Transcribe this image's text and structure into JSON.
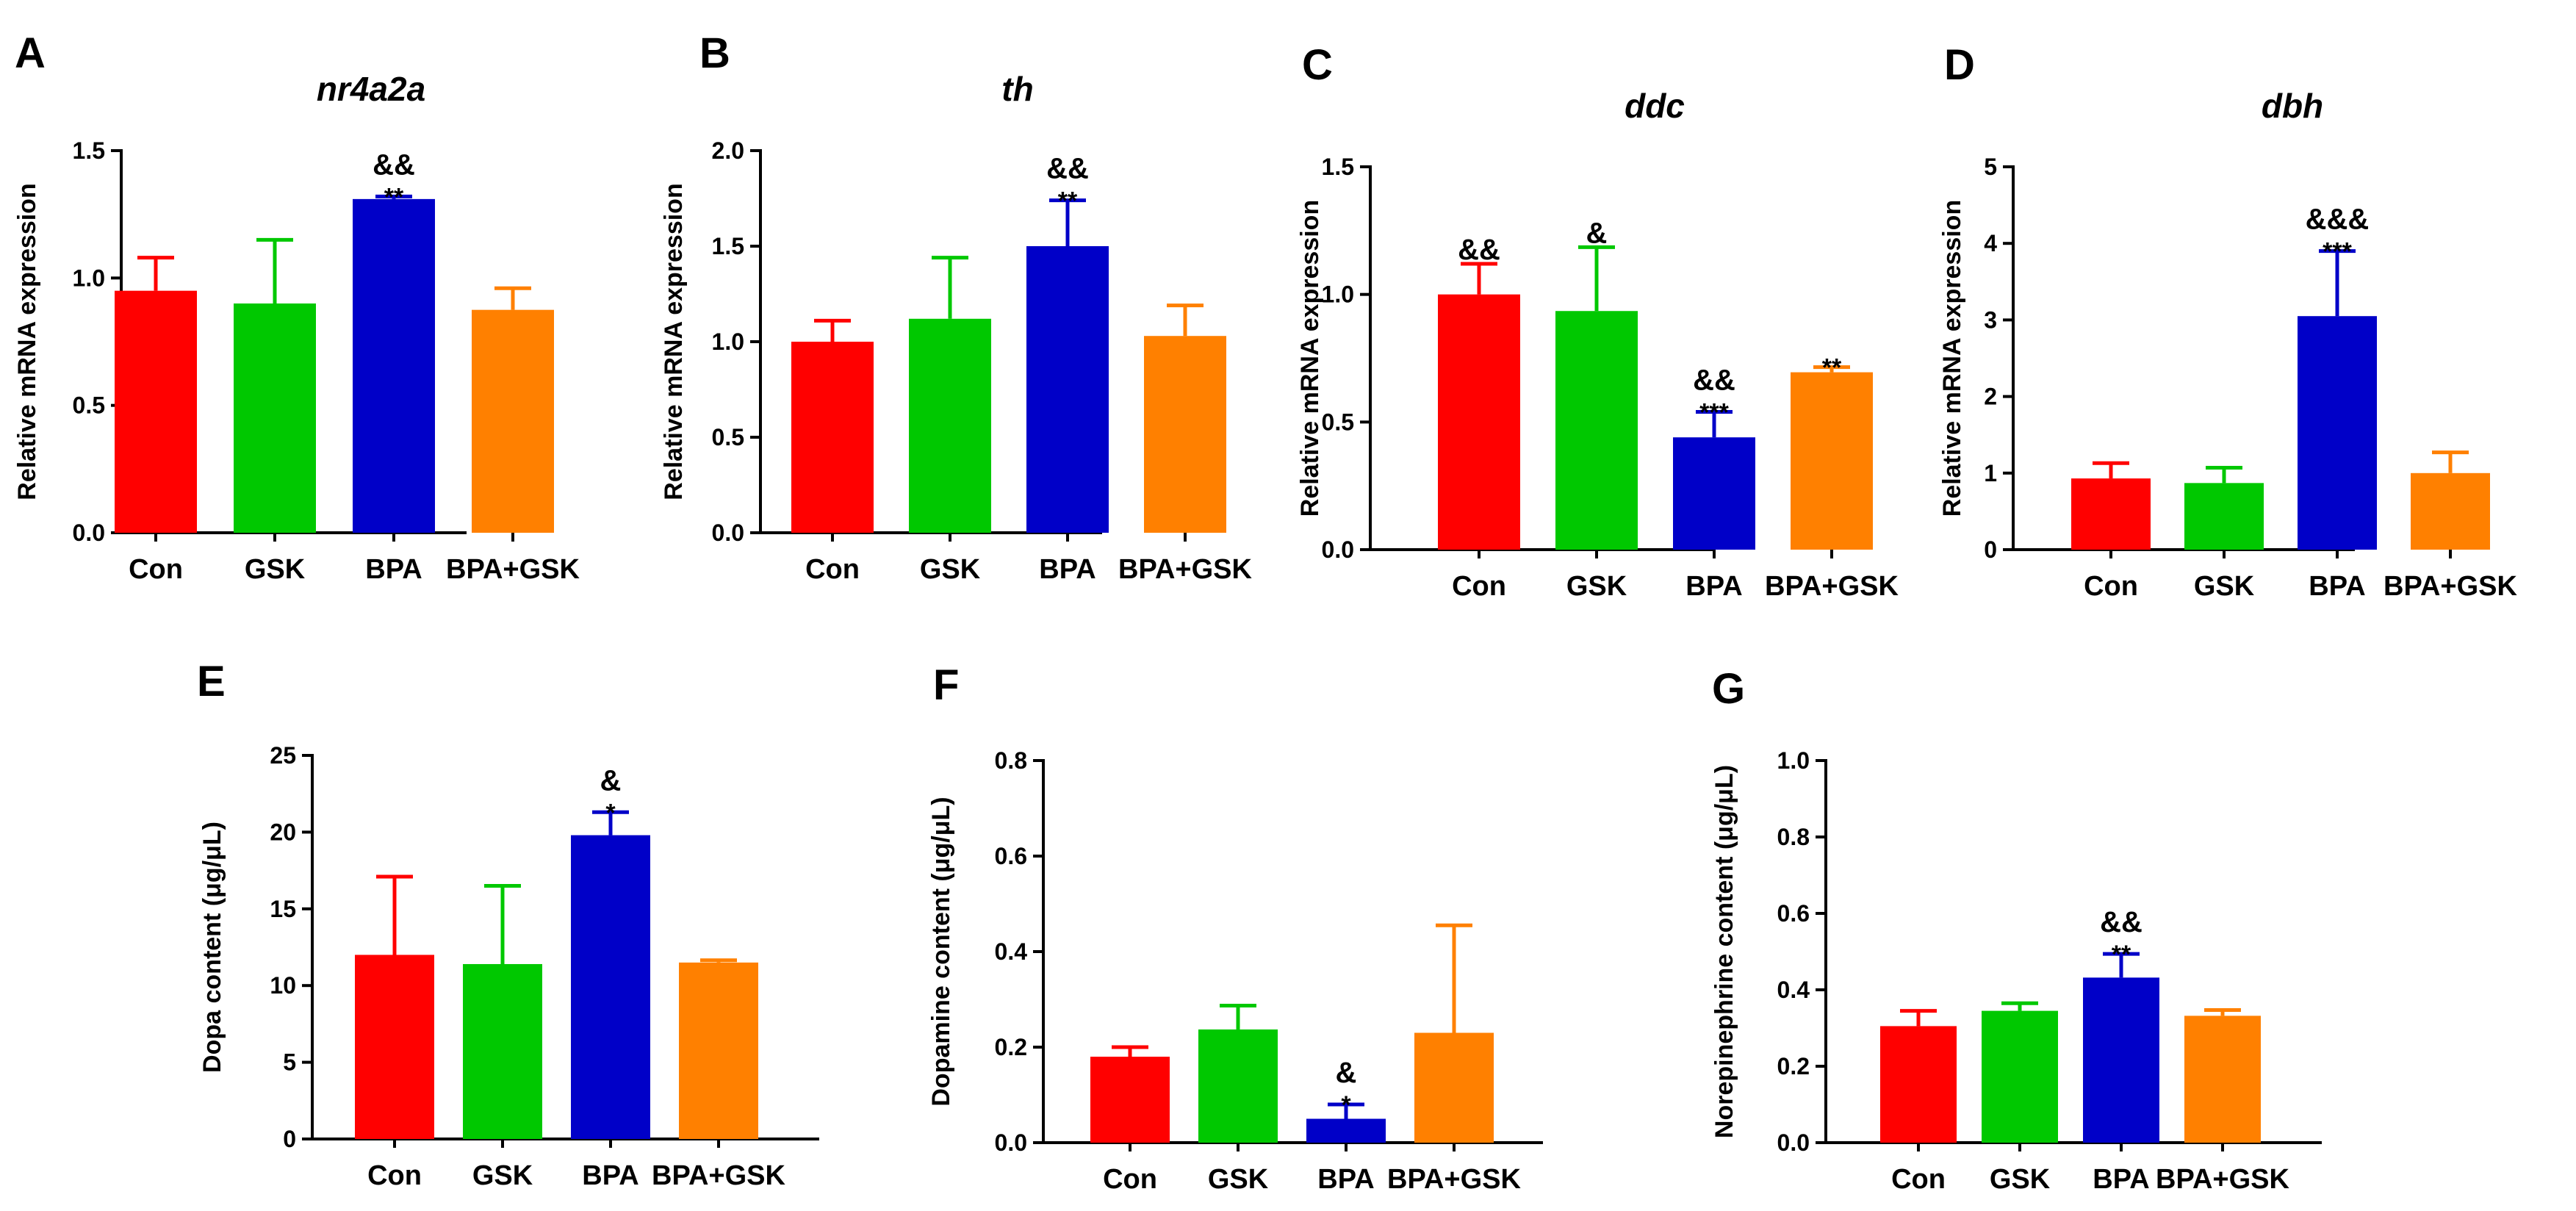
{
  "chart_data": [
    {
      "id": "A",
      "letter": "A",
      "type": "bar",
      "title": "nr4a2a",
      "ylabel": "Relative mRNA expression",
      "ylim": [
        0,
        1.5
      ],
      "yticks": [
        "0.0",
        "0.5",
        "1.0",
        "1.5"
      ],
      "categories": [
        "Con",
        "GSK",
        "BPA",
        "BPA+GSK"
      ],
      "values": [
        0.95,
        0.9,
        1.31,
        0.875
      ],
      "errors": [
        0.13,
        0.25,
        0.01,
        0.085
      ],
      "colors": [
        "#ff0000",
        "#00c800",
        "#0000c8",
        "#ff8000"
      ],
      "annotations": [
        {
          "index": 2,
          "amp": "&&",
          "star": "**"
        }
      ]
    },
    {
      "id": "B",
      "letter": "B",
      "type": "bar",
      "title": "th",
      "ylabel": "Relative mRNA expression",
      "ylim": [
        0,
        2.0
      ],
      "yticks": [
        "0.0",
        "0.5",
        "1.0",
        "1.5",
        "2.0"
      ],
      "categories": [
        "Con",
        "GSK",
        "BPA",
        "BPA+GSK"
      ],
      "values": [
        1.0,
        1.12,
        1.5,
        1.03
      ],
      "errors": [
        0.11,
        0.32,
        0.24,
        0.16
      ],
      "colors": [
        "#ff0000",
        "#00c800",
        "#0000c8",
        "#ff8000"
      ],
      "annotations": [
        {
          "index": 2,
          "amp": "&&",
          "star": "**"
        }
      ]
    },
    {
      "id": "C",
      "letter": "C",
      "type": "bar",
      "title": "ddc",
      "ylabel": "Relative mRNA expression",
      "ylim": [
        0,
        1.5
      ],
      "yticks": [
        "0.0",
        "0.5",
        "1.0",
        "1.5"
      ],
      "categories": [
        "Con",
        "GSK",
        "BPA",
        "BPA+GSK"
      ],
      "values": [
        1.0,
        0.935,
        0.44,
        0.695
      ],
      "errors": [
        0.12,
        0.25,
        0.1,
        0.02
      ],
      "colors": [
        "#ff0000",
        "#00c800",
        "#0000c8",
        "#ff8000"
      ],
      "annotations": [
        {
          "index": 0,
          "amp": "&&",
          "star": ""
        },
        {
          "index": 1,
          "amp": "&",
          "star": ""
        },
        {
          "index": 2,
          "amp": "&&",
          "star": "***"
        },
        {
          "index": 3,
          "amp": "",
          "star": "**"
        }
      ]
    },
    {
      "id": "D",
      "letter": "D",
      "type": "bar",
      "title": "dbh",
      "ylabel": "Relative mRNA expression",
      "ylim": [
        0,
        5
      ],
      "yticks": [
        "0",
        "1",
        "2",
        "3",
        "4",
        "5"
      ],
      "categories": [
        "Con",
        "GSK",
        "BPA",
        "BPA+GSK"
      ],
      "values": [
        0.93,
        0.87,
        3.05,
        1.0
      ],
      "errors": [
        0.2,
        0.2,
        0.85,
        0.27
      ],
      "colors": [
        "#ff0000",
        "#00c800",
        "#0000c8",
        "#ff8000"
      ],
      "annotations": [
        {
          "index": 2,
          "amp": "&&&",
          "star": "***"
        }
      ]
    },
    {
      "id": "E",
      "letter": "E",
      "type": "bar",
      "title": "",
      "ylabel": "Dopa content (μg/μL)",
      "ylim": [
        0,
        25
      ],
      "yticks": [
        "0",
        "5",
        "10",
        "15",
        "20",
        "25"
      ],
      "categories": [
        "Con",
        "GSK",
        "BPA",
        "BPA+GSK"
      ],
      "values": [
        12.0,
        11.4,
        19.8,
        11.5
      ],
      "errors": [
        5.1,
        5.1,
        1.5,
        0.15
      ],
      "colors": [
        "#ff0000",
        "#00c800",
        "#0000c8",
        "#ff8000"
      ],
      "annotations": [
        {
          "index": 2,
          "amp": "&",
          "star": "*"
        }
      ]
    },
    {
      "id": "F",
      "letter": "F",
      "type": "bar",
      "title": "",
      "ylabel": "Dopamine content (μg/μL)",
      "ylim": [
        0,
        0.8
      ],
      "yticks": [
        "0.0",
        "0.2",
        "0.4",
        "0.6",
        "0.8"
      ],
      "categories": [
        "Con",
        "GSK",
        "BPA",
        "BPA+GSK"
      ],
      "values": [
        0.18,
        0.237,
        0.05,
        0.23
      ],
      "errors": [
        0.02,
        0.05,
        0.03,
        0.225
      ],
      "colors": [
        "#ff0000",
        "#00c800",
        "#0000c8",
        "#ff8000"
      ],
      "annotations": [
        {
          "index": 2,
          "amp": "&",
          "star": "*"
        }
      ]
    },
    {
      "id": "G",
      "letter": "G",
      "type": "bar",
      "title": "",
      "ylabel": "Norepinephrine content (μg/μL)",
      "ylim": [
        0,
        1.0
      ],
      "yticks": [
        "0.0",
        "0.2",
        "0.4",
        "0.6",
        "0.8",
        "1.0"
      ],
      "categories": [
        "Con",
        "GSK",
        "BPA",
        "BPA+GSK"
      ],
      "values": [
        0.305,
        0.345,
        0.432,
        0.332
      ],
      "errors": [
        0.04,
        0.02,
        0.062,
        0.015
      ],
      "colors": [
        "#ff0000",
        "#00c800",
        "#0000c8",
        "#ff8000"
      ],
      "annotations": [
        {
          "index": 2,
          "amp": "&&",
          "star": "**"
        }
      ]
    }
  ]
}
